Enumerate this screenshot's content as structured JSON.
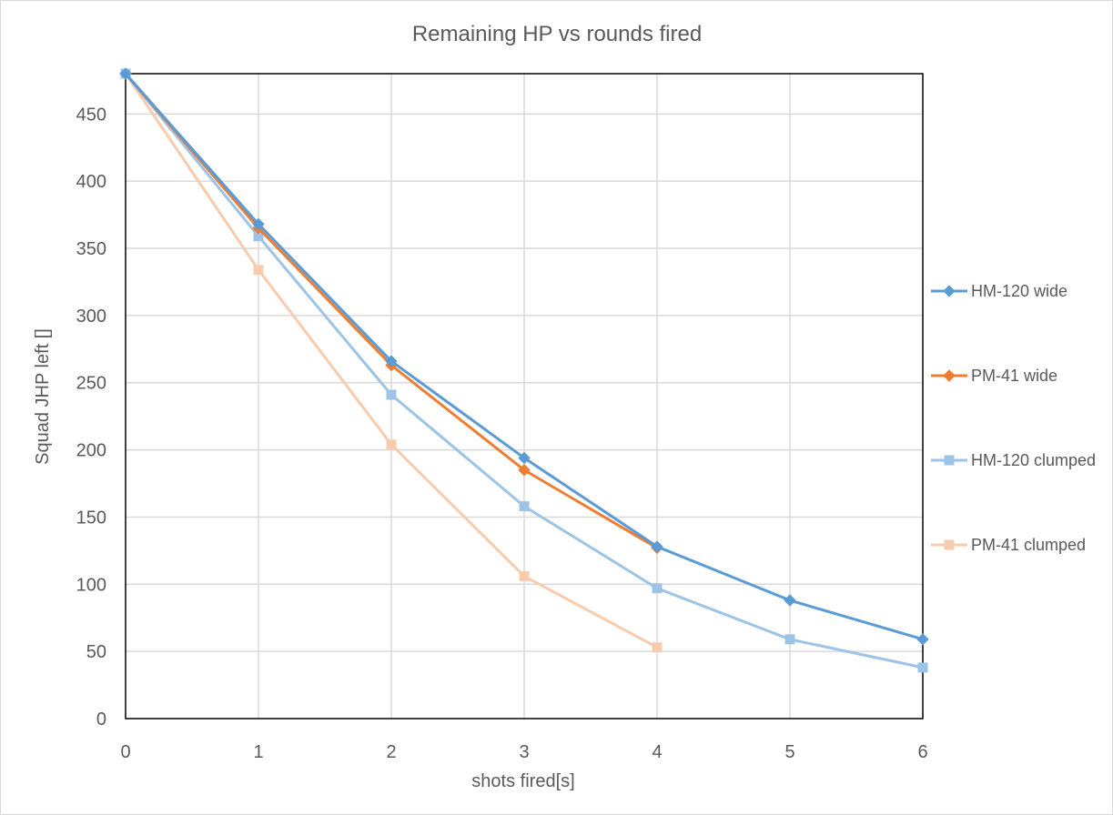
{
  "chart_data": {
    "type": "line",
    "title": "Remaining HP vs rounds fired",
    "xlabel": "shots fired[s]",
    "ylabel": "Squad JHP left []",
    "xlim": [
      0,
      6
    ],
    "ylim": [
      0,
      480
    ],
    "x_ticks": [
      "0",
      "1",
      "2",
      "3",
      "4",
      "5",
      "6"
    ],
    "y_ticks": [
      "0",
      "50",
      "100",
      "150",
      "200",
      "250",
      "300",
      "350",
      "400",
      "450"
    ],
    "grid": true,
    "legend_position": "right",
    "series": [
      {
        "name": "HM-120 wide",
        "color": "#5b9bd5",
        "marker": "diamond",
        "x": [
          0,
          1,
          2,
          3,
          4,
          5,
          6
        ],
        "values": [
          480,
          368,
          266,
          194,
          128,
          88,
          59
        ]
      },
      {
        "name": "PM-41 wide",
        "color": "#ed7d31",
        "marker": "diamond",
        "x": [
          0,
          1,
          2,
          3,
          4
        ],
        "values": [
          480,
          365,
          263,
          185,
          127
        ]
      },
      {
        "name": "HM-120 clumped",
        "color": "#9dc3e6",
        "marker": "square",
        "x": [
          0,
          1,
          2,
          3,
          4,
          5,
          6
        ],
        "values": [
          480,
          359,
          241,
          158,
          97,
          59,
          38
        ]
      },
      {
        "name": "PM-41 clumped",
        "color": "#f8cbad",
        "marker": "square",
        "x": [
          0,
          1,
          2,
          3,
          4
        ],
        "values": [
          480,
          334,
          204,
          106,
          53
        ]
      }
    ]
  }
}
